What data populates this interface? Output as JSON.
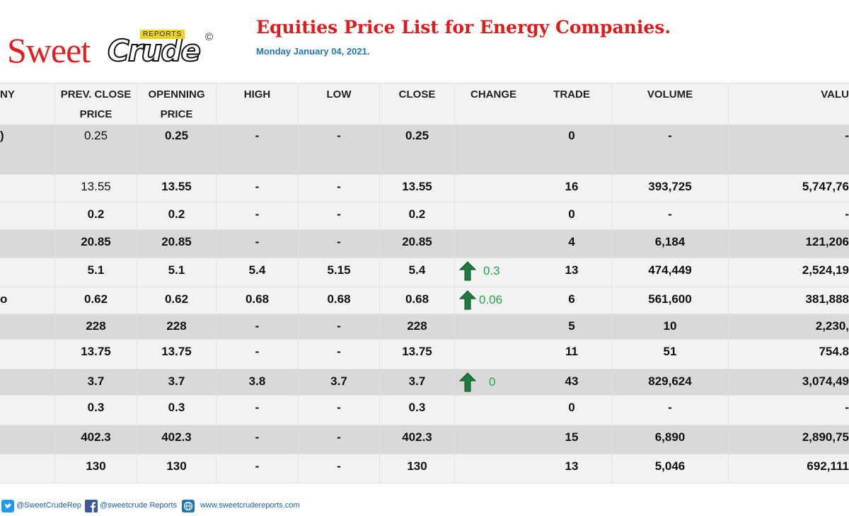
{
  "header": {
    "logo_sweet": "Sweet",
    "logo_crude": "Crude",
    "logo_reports": "REPORTS",
    "logo_copyright": "©",
    "title": "Equities Price List for Energy Companies.",
    "date": "Monday January 04, 2021."
  },
  "table": {
    "columns": [
      {
        "l1": "NY",
        "l2": ""
      },
      {
        "l1": "PREV. CLOSE",
        "l2": "PRICE"
      },
      {
        "l1": "OPENNING",
        "l2": "PRICE"
      },
      {
        "l1": "HIGH",
        "l2": ""
      },
      {
        "l1": "LOW",
        "l2": ""
      },
      {
        "l1": "CLOSE",
        "l2": ""
      },
      {
        "l1": "CHANGE",
        "l2": ""
      },
      {
        "l1": "TRADE",
        "l2": ""
      },
      {
        "l1": "VOLUME",
        "l2": ""
      },
      {
        "l1": "VALU",
        "l2": ""
      }
    ],
    "rows": [
      {
        "company": ")",
        "prev": "0.25",
        "open": "0.25",
        "high": "-",
        "low": "-",
        "close": "0.25",
        "change": "",
        "trade": "0",
        "volume": "-",
        "value": "-"
      },
      {
        "company": "",
        "prev": "13.55",
        "open": "13.55",
        "high": "-",
        "low": "-",
        "close": "13.55",
        "change": "",
        "trade": "16",
        "volume": "393,725",
        "value": "5,747,76"
      },
      {
        "company": "",
        "prev": "0.2",
        "open": "0.2",
        "high": "-",
        "low": "-",
        "close": "0.2",
        "change": "",
        "trade": "0",
        "volume": "-",
        "value": "-"
      },
      {
        "company": "",
        "prev": "20.85",
        "open": "20.85",
        "high": "-",
        "low": "-",
        "close": "20.85",
        "change": "",
        "trade": "4",
        "volume": "6,184",
        "value": "121,206"
      },
      {
        "company": "",
        "prev": "5.1",
        "open": "5.1",
        "high": "5.4",
        "low": "5.15",
        "close": "5.4",
        "change": "0.3",
        "trade": "13",
        "volume": "474,449",
        "value": "2,524,19"
      },
      {
        "company": "o",
        "prev": "0.62",
        "open": "0.62",
        "high": "0.68",
        "low": "0.68",
        "close": "0.68",
        "change": "0.06",
        "trade": "6",
        "volume": "561,600",
        "value": "381,888"
      },
      {
        "company": "",
        "prev": "228",
        "open": "228",
        "high": "-",
        "low": "-",
        "close": "228",
        "change": "",
        "trade": "5",
        "volume": "10",
        "value": "2,230,"
      },
      {
        "company": "",
        "prev": "13.75",
        "open": "13.75",
        "high": "-",
        "low": "-",
        "close": "13.75",
        "change": "",
        "trade": "11",
        "volume": "51",
        "value": "754.8"
      },
      {
        "company": "",
        "prev": "3.7",
        "open": "3.7",
        "high": "3.8",
        "low": "3.7",
        "close": "3.7",
        "change": "0",
        "trade": "43",
        "volume": "829,624",
        "value": "3,074,49"
      },
      {
        "company": "",
        "prev": "0.3",
        "open": "0.3",
        "high": "-",
        "low": "-",
        "close": "0.3",
        "change": "",
        "trade": "0",
        "volume": "-",
        "value": "-"
      },
      {
        "company": "",
        "prev": "402.3",
        "open": "402.3",
        "high": "-",
        "low": "-",
        "close": "402.3",
        "change": "",
        "trade": "15",
        "volume": "6,890",
        "value": "2,890,75"
      },
      {
        "company": "",
        "prev": "130",
        "open": "130",
        "high": "-",
        "low": "-",
        "close": "130",
        "change": "",
        "trade": "13",
        "volume": "5,046",
        "value": "692,111"
      }
    ]
  },
  "footer": {
    "twitter_icon": "twitter-icon",
    "twitter": "@SweetCrudeRep",
    "facebook_icon": "facebook-icon",
    "facebook": "@sweetcrude Reports",
    "globe_icon": "globe-icon",
    "website": "www.sweetcrudereports.com"
  },
  "colors": {
    "title_red": "#e01b1b",
    "date_blue": "#1f78b4",
    "change_green": "#22a84a",
    "arrow_green": "#1e7a3e"
  }
}
